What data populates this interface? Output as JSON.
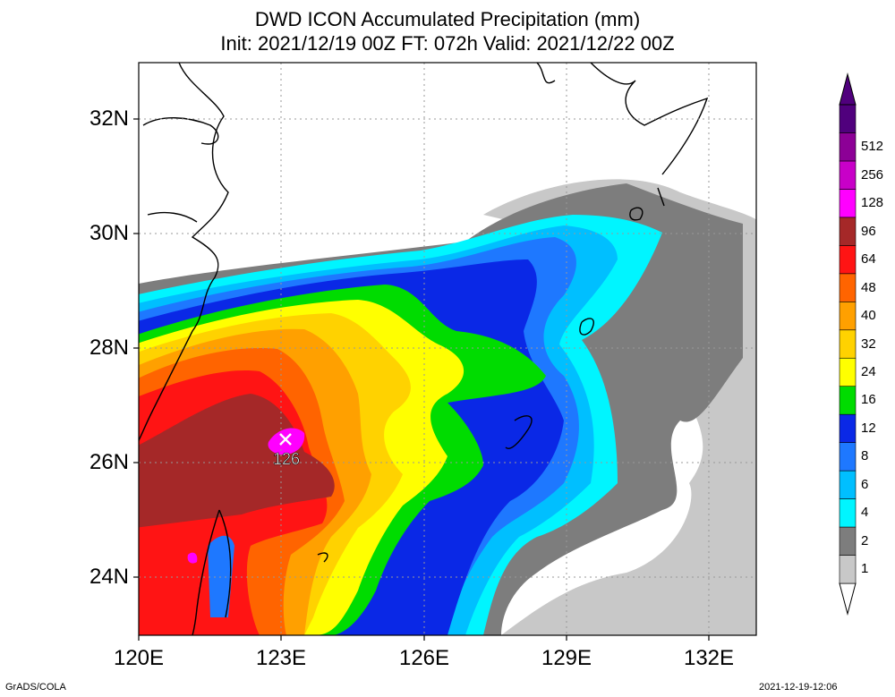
{
  "title": {
    "line1": "DWD ICON Accumulated Precipitation (mm)",
    "line2": "Init: 2021/12/19 00Z  FT: 072h  Valid: 2021/12/22 00Z"
  },
  "axes": {
    "lon_labels": [
      "120E",
      "123E",
      "126E",
      "129E",
      "132E"
    ],
    "lat_labels": [
      "32N",
      "30N",
      "28N",
      "26N",
      "24N"
    ]
  },
  "max_marker": {
    "label": "126",
    "lon": 123.1,
    "lat": 26.4
  },
  "colorbar": {
    "labels": [
      "1",
      "2",
      "4",
      "6",
      "8",
      "12",
      "16",
      "24",
      "32",
      "40",
      "48",
      "64",
      "96",
      "128",
      "256",
      "512"
    ],
    "colors": [
      "#c8c8c8",
      "#7d7d7d",
      "#00f5ff",
      "#00bfff",
      "#1e78ff",
      "#0a28e6",
      "#00dc00",
      "#ffff00",
      "#ffd200",
      "#ffa000",
      "#ff6400",
      "#ff1414",
      "#a52828",
      "#ff00ff",
      "#c800c8",
      "#8c0096",
      "#50007d"
    ]
  },
  "footer": {
    "left": "GrADS/COLA",
    "right": "2021-12-19-12:06"
  }
}
